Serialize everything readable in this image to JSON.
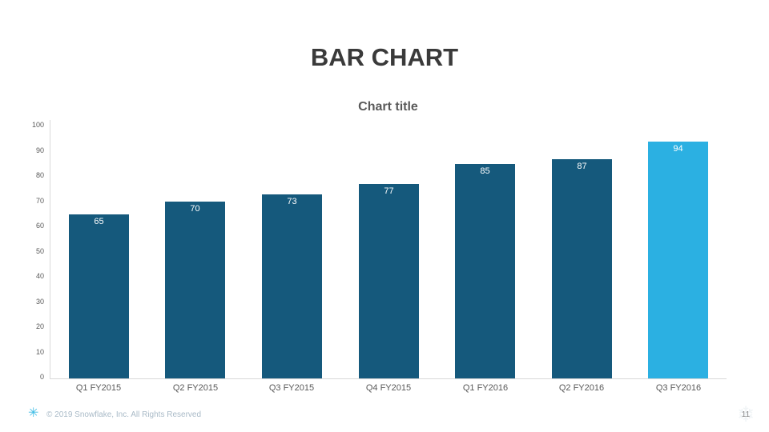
{
  "slide": {
    "title": "BAR CHART",
    "page_number": "11",
    "footer": {
      "logo_icon": "snowflake-icon",
      "copyright": "© 2019 Snowflake, Inc. All Rights Reserved"
    }
  },
  "chart_data": {
    "type": "bar",
    "title": "Chart title",
    "categories": [
      "Q1 FY2015",
      "Q2 FY2015",
      "Q3 FY2015",
      "Q4 FY2015",
      "Q1 FY2016",
      "Q2 FY2016",
      "Q3 FY2016"
    ],
    "values": [
      65,
      70,
      73,
      77,
      85,
      87,
      94
    ],
    "data_labels_shown": true,
    "xlabel": "",
    "ylabel": "",
    "ylim": [
      0,
      100
    ],
    "yticks": [
      0,
      10,
      20,
      30,
      40,
      50,
      60,
      70,
      80,
      90,
      100
    ],
    "grid": false,
    "legend": false,
    "colors": {
      "bar_default": "#15597c",
      "bar_highlight": "#2bb0e2",
      "highlight_index": 6,
      "value_label_text": "#ffffff",
      "axis_line": "#d9d9d9",
      "tick_text": "#595959",
      "accent_blue": "#29b5e8"
    }
  }
}
